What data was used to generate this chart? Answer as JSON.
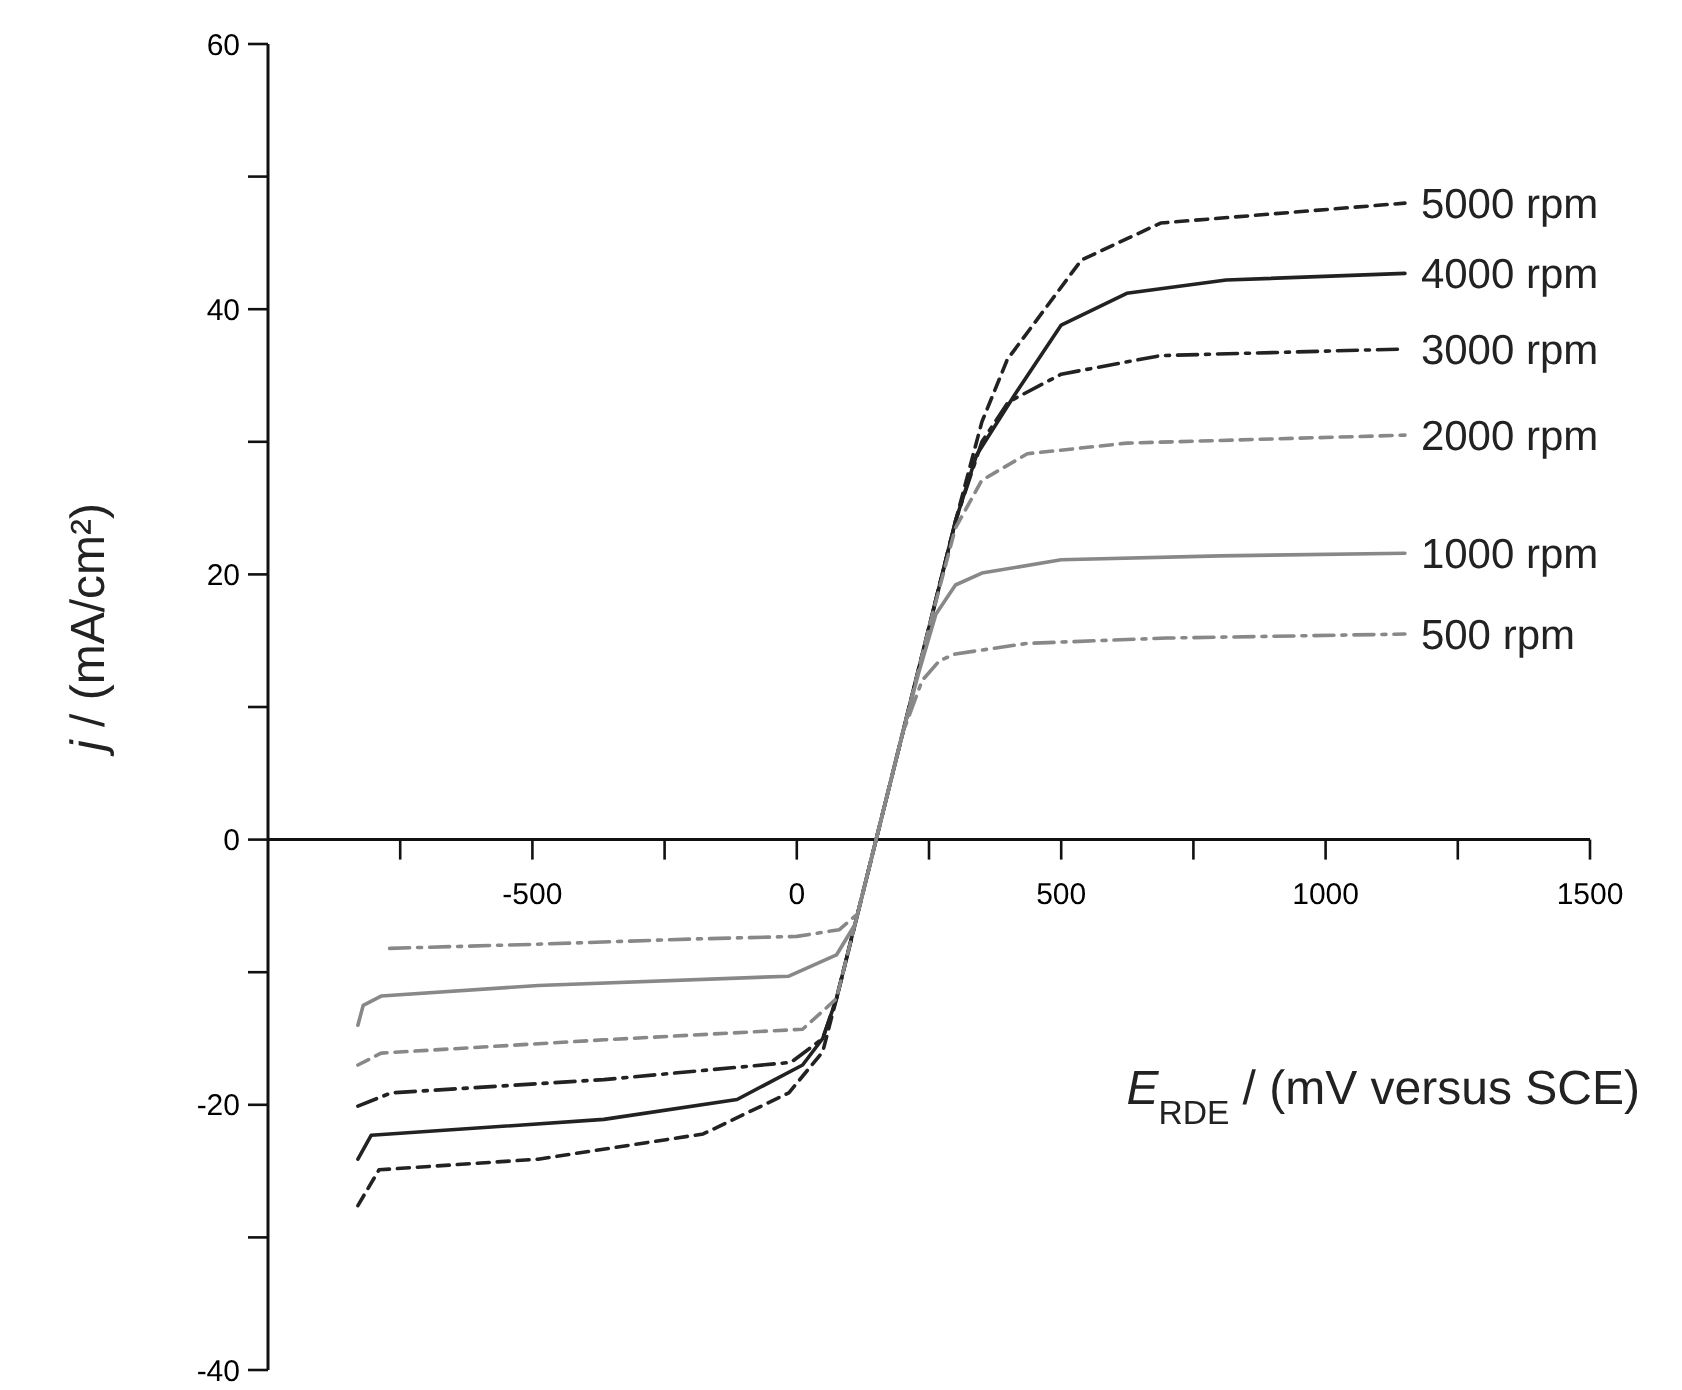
{
  "chart_data": {
    "type": "line",
    "xlabel": "E$_{RDE}$ / (mV versus SCE)",
    "ylabel": "j / (mA/cm²)",
    "xlim": [
      -1000,
      1500
    ],
    "ylim": [
      -40,
      60
    ],
    "xticks": [
      {
        "value": -750,
        "label": null
      },
      -500,
      {
        "value": -250,
        "label": null
      },
      0,
      {
        "value": 250,
        "label": null
      },
      500,
      {
        "value": 750,
        "label": null
      },
      1000,
      {
        "value": 1250,
        "label": null
      },
      1500
    ],
    "yticks": [
      -40,
      {
        "value": -30,
        "label": null
      },
      -20,
      {
        "value": -10,
        "label": null
      },
      0,
      {
        "value": 10,
        "label": null
      },
      20,
      {
        "value": 30,
        "label": null
      },
      40,
      {
        "value": 50,
        "label": null
      },
      60
    ],
    "grid": false,
    "legend": false,
    "marker": "none",
    "series": [
      {
        "name": "5000 rpm",
        "color": "#222222",
        "line_style": "dashed",
        "x": [
          -830,
          -790,
          -489,
          -177,
          -15,
          49,
          75,
          100,
          150,
          250,
          300,
          350,
          398,
          538,
          688,
          1150
        ],
        "values": [
          -27.6,
          -24.9,
          -24.1,
          -22.2,
          -19.1,
          -16,
          -12,
          -8,
          0,
          16,
          24,
          31.5,
          36.2,
          43.7,
          46.5,
          48
        ]
      },
      {
        "name": "4000 rpm",
        "color": "#222222",
        "line_style": "solid",
        "x": [
          -830,
          -805,
          -365,
          -113,
          11,
          49,
          75,
          100,
          150,
          250,
          300,
          340,
          413,
          500,
          624,
          812,
          1150
        ],
        "values": [
          -24.1,
          -22.3,
          -21.1,
          -19.6,
          -17,
          -15,
          -12,
          -8,
          0,
          16,
          24,
          29,
          33.6,
          38.8,
          41.2,
          42.2,
          42.7
        ]
      },
      {
        "name": "3000 rpm",
        "color": "#222222",
        "line_style": "dashdot",
        "x": [
          -830,
          -767,
          -365,
          -11,
          49,
          75,
          100,
          150,
          250,
          300,
          350,
          400,
          500,
          688,
          1150
        ],
        "values": [
          -20.1,
          -19.1,
          -18.1,
          -16.8,
          -15,
          -12,
          -8,
          0,
          16,
          24,
          30,
          33,
          35.1,
          36.5,
          37
        ]
      },
      {
        "name": "2000 rpm",
        "color": "#888888",
        "line_style": "dashed",
        "x": [
          -830,
          -786,
          -365,
          11,
          75,
          100,
          150,
          250,
          300,
          350,
          436,
          624,
          1150
        ],
        "values": [
          -17,
          -16.1,
          -15.1,
          -14.3,
          -12,
          -8,
          0,
          16,
          23.5,
          27.1,
          29.1,
          29.9,
          30.5
        ]
      },
      {
        "name": "1000 rpm",
        "color": "#888888",
        "line_style": "solid",
        "x": [
          -830,
          -820,
          -786,
          -489,
          -15,
          75,
          110,
          150,
          200,
          230,
          263,
          300,
          350,
          500,
          800,
          1150
        ],
        "values": [
          -14,
          -12.5,
          -11.8,
          -11,
          -10.3,
          -8.7,
          -6.4,
          0,
          8,
          12.5,
          17,
          19.2,
          20.1,
          21.1,
          21.4,
          21.6
        ]
      },
      {
        "name": "500 rpm",
        "color": "#888888",
        "line_style": "dashdot",
        "x": [
          -770,
          -500,
          -200,
          0,
          80,
          115,
          150,
          200,
          237,
          270,
          300,
          436,
          700,
          1150
        ],
        "values": [
          -8.2,
          -7.9,
          -7.5,
          -7.3,
          -6.8,
          -5.6,
          0,
          8,
          12,
          13.5,
          14,
          14.8,
          15.2,
          15.5
        ]
      }
    ]
  }
}
